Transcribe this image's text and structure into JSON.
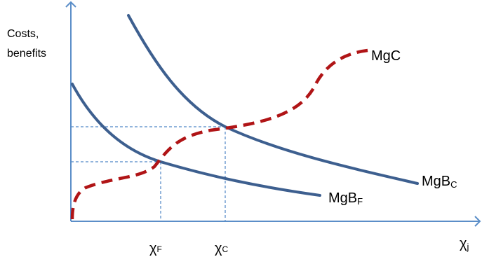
{
  "colors": {
    "axis": "#5b8ec8",
    "benefit_curve": "#3d5f8f",
    "cost_curve": "#b01416",
    "guide": "#4f86c6",
    "text": "#000000"
  },
  "labels": {
    "y_axis_line1": "Costs,",
    "y_axis_line2": "benefits",
    "x_axis_main": "χ",
    "x_axis_sub": "j",
    "chi_f_main": "χ",
    "chi_f_sub": "F",
    "chi_c_main": "χ",
    "chi_c_sub": "C",
    "mgc": "MgC",
    "mgbc_main": "MgB",
    "mgbc_sub": "C",
    "mgbf_main": "MgB",
    "mgbf_sub": "F"
  },
  "curves": [
    {
      "id": "MgB_C",
      "style": "solid",
      "color_key": "benefit_curve"
    },
    {
      "id": "MgB_F",
      "style": "solid",
      "color_key": "benefit_curve"
    },
    {
      "id": "MgC",
      "style": "dashed",
      "color_key": "cost_curve"
    }
  ]
}
